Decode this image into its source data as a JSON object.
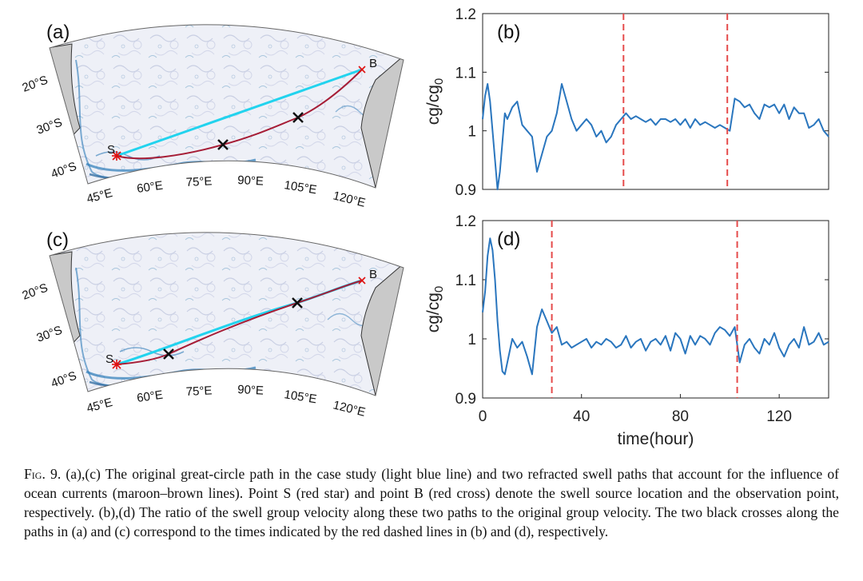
{
  "maps": [
    {
      "panel": "(a)",
      "lat_labels": [
        "20°S",
        "30°S",
        "40°S"
      ],
      "lon_labels": [
        "45°E",
        "60°E",
        "75°E",
        "90°E",
        "105°E",
        "120°E"
      ],
      "point_s_label": "S",
      "point_b_label": "B",
      "colors": {
        "great_circle": "#22d3ee",
        "refracted": "#a61d36",
        "point_marker": "#e01010",
        "cross": "#111111",
        "land": "#c9c9c9",
        "current": "#2b7ab8"
      }
    },
    {
      "panel": "(c)",
      "lat_labels": [
        "20°S",
        "30°S",
        "40°S"
      ],
      "lon_labels": [
        "45°E",
        "60°E",
        "75°E",
        "90°E",
        "105°E",
        "120°E"
      ],
      "point_s_label": "S",
      "point_b_label": "B",
      "colors": {
        "great_circle": "#22d3ee",
        "refracted": "#a61d36",
        "point_marker": "#e01010",
        "cross": "#111111",
        "land": "#c9c9c9",
        "current": "#2b7ab8"
      }
    }
  ],
  "chart_data": [
    {
      "panel": "(b)",
      "type": "line",
      "ylabel": "cg/cg0",
      "xlabel": "",
      "xlim": [
        0,
        140
      ],
      "ylim": [
        0.9,
        1.2
      ],
      "yticks": [
        "0.9",
        "1",
        "1.1",
        "1.2"
      ],
      "xticks": [],
      "line_color": "#2a76be",
      "vlines": {
        "x": [
          57,
          99
        ],
        "color": "#e54b4b",
        "style": "dashed"
      },
      "series": [
        {
          "x": [
            0,
            1,
            2,
            3,
            4,
            5,
            6,
            7,
            8,
            9,
            10,
            12,
            14,
            16,
            18,
            20,
            22,
            24,
            26,
            28,
            30,
            32,
            34,
            36,
            38,
            40,
            42,
            44,
            46,
            48,
            50,
            52,
            54,
            56,
            58,
            60,
            62,
            64,
            66,
            68,
            70,
            72,
            74,
            76,
            78,
            80,
            82,
            84,
            86,
            88,
            90,
            92,
            94,
            96,
            98,
            100,
            102,
            104,
            106,
            108,
            110,
            112,
            114,
            116,
            118,
            120,
            122,
            124,
            126,
            128,
            130,
            132,
            134,
            136,
            138,
            140
          ],
          "values": [
            1.02,
            1.06,
            1.08,
            1.05,
            1.0,
            0.95,
            0.9,
            0.93,
            0.98,
            1.03,
            1.02,
            1.04,
            1.05,
            1.01,
            1.0,
            0.99,
            0.93,
            0.96,
            0.99,
            1.0,
            1.03,
            1.08,
            1.05,
            1.02,
            1.0,
            1.01,
            1.02,
            1.01,
            0.99,
            1.0,
            0.98,
            0.99,
            1.01,
            1.02,
            1.03,
            1.02,
            1.025,
            1.02,
            1.015,
            1.02,
            1.01,
            1.02,
            1.02,
            1.015,
            1.02,
            1.01,
            1.02,
            1.005,
            1.02,
            1.01,
            1.015,
            1.01,
            1.005,
            1.01,
            1.005,
            1.0,
            1.055,
            1.05,
            1.04,
            1.045,
            1.03,
            1.02,
            1.045,
            1.04,
            1.045,
            1.03,
            1.045,
            1.02,
            1.04,
            1.03,
            1.03,
            1.005,
            1.01,
            1.02,
            1.0,
            0.99
          ]
        }
      ]
    },
    {
      "panel": "(d)",
      "type": "line",
      "ylabel": "cg/cg0",
      "xlabel": "time(hour)",
      "xlim": [
        0,
        140
      ],
      "ylim": [
        0.9,
        1.2
      ],
      "yticks": [
        "0.9",
        "1",
        "1.1",
        "1.2"
      ],
      "xticks": [
        "0",
        "40",
        "80",
        "120"
      ],
      "line_color": "#2a76be",
      "vlines": {
        "x": [
          28,
          103
        ],
        "color": "#e54b4b",
        "style": "dashed"
      },
      "series": [
        {
          "x": [
            0,
            1,
            2,
            3,
            4,
            5,
            6,
            7,
            8,
            9,
            10,
            12,
            14,
            16,
            18,
            20,
            22,
            24,
            26,
            28,
            30,
            32,
            34,
            36,
            38,
            40,
            42,
            44,
            46,
            48,
            50,
            52,
            54,
            56,
            58,
            60,
            62,
            64,
            66,
            68,
            70,
            72,
            74,
            76,
            78,
            80,
            82,
            84,
            86,
            88,
            90,
            92,
            94,
            96,
            98,
            100,
            102,
            104,
            106,
            108,
            110,
            112,
            114,
            116,
            118,
            120,
            122,
            124,
            126,
            128,
            130,
            132,
            134,
            136,
            138,
            140
          ],
          "values": [
            1.045,
            1.08,
            1.14,
            1.17,
            1.15,
            1.1,
            1.03,
            0.98,
            0.945,
            0.94,
            0.96,
            1.0,
            0.985,
            0.995,
            0.97,
            0.94,
            1.02,
            1.05,
            1.03,
            1.01,
            1.02,
            0.99,
            0.995,
            0.985,
            0.99,
            0.995,
            1.0,
            0.985,
            0.995,
            0.99,
            1.0,
            0.995,
            0.985,
            0.99,
            1.005,
            0.985,
            0.995,
            1.0,
            0.98,
            0.995,
            1.0,
            0.99,
            1.005,
            0.98,
            1.01,
            1.0,
            0.975,
            1.005,
            0.99,
            1.005,
            1.0,
            0.99,
            1.01,
            1.02,
            1.015,
            1.005,
            1.02,
            0.96,
            0.99,
            1.0,
            0.985,
            0.975,
            1.0,
            0.99,
            1.01,
            0.985,
            0.97,
            0.99,
            1.0,
            0.985,
            1.02,
            0.99,
            0.995,
            1.01,
            0.99,
            0.995
          ]
        }
      ]
    }
  ],
  "caption": {
    "fig_label": "Fig. 9.",
    "text": " (a),(c) The original great-circle path in the case study (light blue line) and two refracted swell paths that account for the influence of ocean currents (maroon–brown lines). Point S (red star) and point B (red cross) denote the swell source location and the observation point, respectively. (b),(d) The ratio of the swell group velocity along these two paths to the original group velocity. The two black crosses along the paths in (a) and (c) correspond to the times indicated by the red dashed lines in (b) and (d), respectively."
  }
}
